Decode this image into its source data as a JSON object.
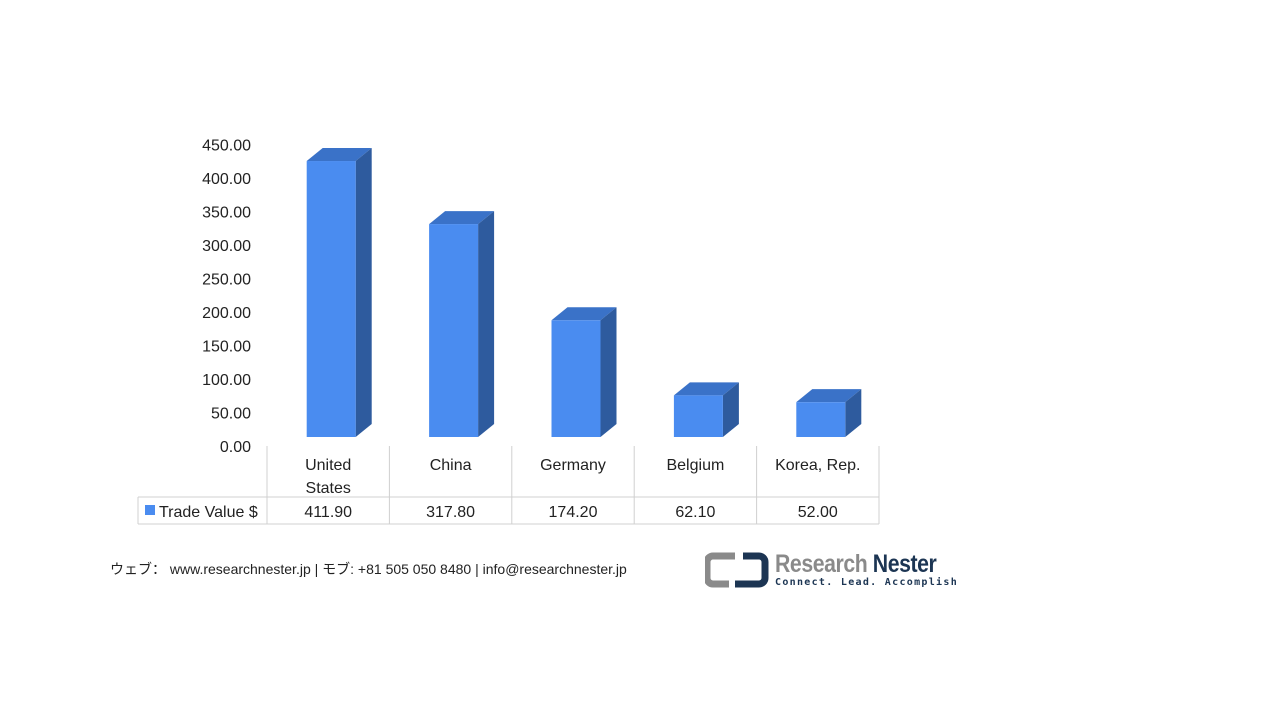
{
  "chart_data": {
    "type": "bar",
    "categories": [
      "United States",
      "China",
      "Germany",
      "Belgium",
      "Korea, Rep."
    ],
    "series": [
      {
        "name": "Trade Value $",
        "values": [
          411.9,
          317.8,
          174.2,
          62.1,
          52.0
        ]
      }
    ],
    "value_labels": [
      "411.90",
      "317.80",
      "174.20",
      "62.10",
      "52.00"
    ],
    "yticks": [
      "0.00",
      "50.00",
      "100.00",
      "150.00",
      "200.00",
      "250.00",
      "300.00",
      "350.00",
      "400.00",
      "450.00"
    ],
    "ylim": [
      0,
      450
    ],
    "data_table": true,
    "colors": {
      "front": "#4a8cf0",
      "side": "#2e5b9e",
      "top": "#3a72c8"
    }
  },
  "footer": {
    "text": "ウェブ： www.researchnester.jp  | モブ: +81 505 050 8480 | info@researchnester.jp"
  },
  "logo": {
    "name_a": "Research",
    "name_b": "Nester",
    "tagline": "Connect. Lead. Accomplish"
  }
}
